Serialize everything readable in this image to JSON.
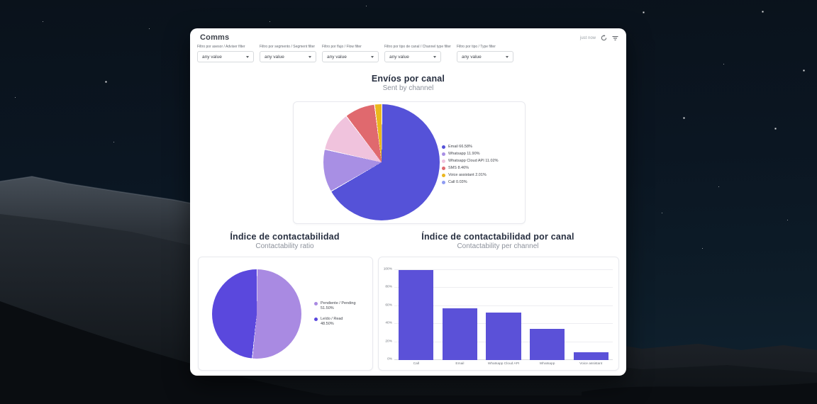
{
  "header": {
    "title": "Comms",
    "refreshed": "just now"
  },
  "filters": [
    {
      "label": "Filtro por asesor / Adviser filter",
      "value": "any value"
    },
    {
      "label": "Filtro por segmento / Segment filter",
      "value": "any value"
    },
    {
      "label": "Filtro por flujo / Flow filter",
      "value": "any value"
    },
    {
      "label": "Filtro por tipo de canal / Channel type filter",
      "value": "any value"
    },
    {
      "label": "Filtro por tipo / Type filter",
      "value": "any value"
    }
  ],
  "chart_data": [
    {
      "id": "sent-by-channel",
      "type": "pie",
      "title": "Envíos por canal",
      "subtitle": "Sent by channel",
      "legend_position": "right",
      "series": [
        {
          "name": "Email",
          "value": 66.58,
          "color": "#5552d8"
        },
        {
          "name": "Whatsapp",
          "value": 11.9,
          "color": "#a88fe4"
        },
        {
          "name": "Whatsapp Cloud API",
          "value": 11.02,
          "color": "#f0c3dd"
        },
        {
          "name": "SMS",
          "value": 8.46,
          "color": "#e0696e"
        },
        {
          "name": "Voice assistant",
          "value": 2.01,
          "color": "#ebb71e"
        },
        {
          "name": "Call",
          "value": 0.03,
          "color": "#8f9cf2"
        }
      ]
    },
    {
      "id": "contactability-ratio",
      "type": "pie",
      "title": "Índice de contactabilidad",
      "subtitle": "Contactability ratio",
      "legend_position": "right",
      "series": [
        {
          "name": "Pendiente / Pending",
          "value": 51.5,
          "color": "#a98ae2"
        },
        {
          "name": "Leído / Read",
          "value": 48.5,
          "color": "#5a48dd"
        }
      ]
    },
    {
      "id": "contactability-per-channel",
      "type": "bar",
      "title": "Índice de contactabilidad por canal",
      "subtitle": "Contactability per channel",
      "categories": [
        "Call",
        "Email",
        "Whatsapp Cloud API",
        "Whatsapp",
        "Voice assistant"
      ],
      "values": [
        100,
        57.5,
        52.5,
        34.5,
        9
      ],
      "color": "#5b51d8",
      "ylim": [
        0,
        100
      ],
      "yticks": [
        0,
        20,
        40,
        60,
        80,
        100
      ],
      "grid": true
    }
  ]
}
